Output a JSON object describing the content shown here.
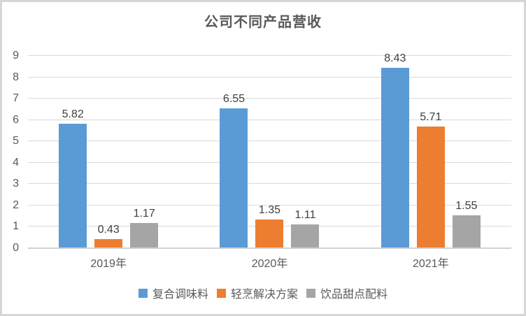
{
  "chart_data": {
    "type": "bar",
    "title": "公司不同产品营收",
    "categories": [
      "2019年",
      "2020年",
      "2021年"
    ],
    "series": [
      {
        "name": "复合调味料",
        "color": "#5B9BD5",
        "values": [
          5.82,
          6.55,
          8.43
        ]
      },
      {
        "name": "轻烹解决方案",
        "color": "#ED7D31",
        "values": [
          0.43,
          1.35,
          5.71
        ]
      },
      {
        "name": "饮品甜点配料",
        "color": "#A5A5A5",
        "values": [
          1.17,
          1.11,
          1.55
        ]
      }
    ],
    "data_labels": [
      "5.82",
      "0.43",
      "1.17",
      "6.55",
      "1.35",
      "1.11",
      "8.43",
      "5.71",
      "1.55"
    ],
    "xlabel": "",
    "ylabel": "",
    "y_axis": {
      "min": 0,
      "max": 9,
      "step": 1
    },
    "grid": true,
    "legend_position": "bottom"
  },
  "colors": {
    "title_text": "#595959",
    "axis_text": "#595959",
    "data_label_text": "#3f3f3f",
    "gridline": "#d9d9d9",
    "axis_line": "#d2d2d2",
    "frame_border": "#d6d6d6",
    "background": "#ffffff"
  }
}
